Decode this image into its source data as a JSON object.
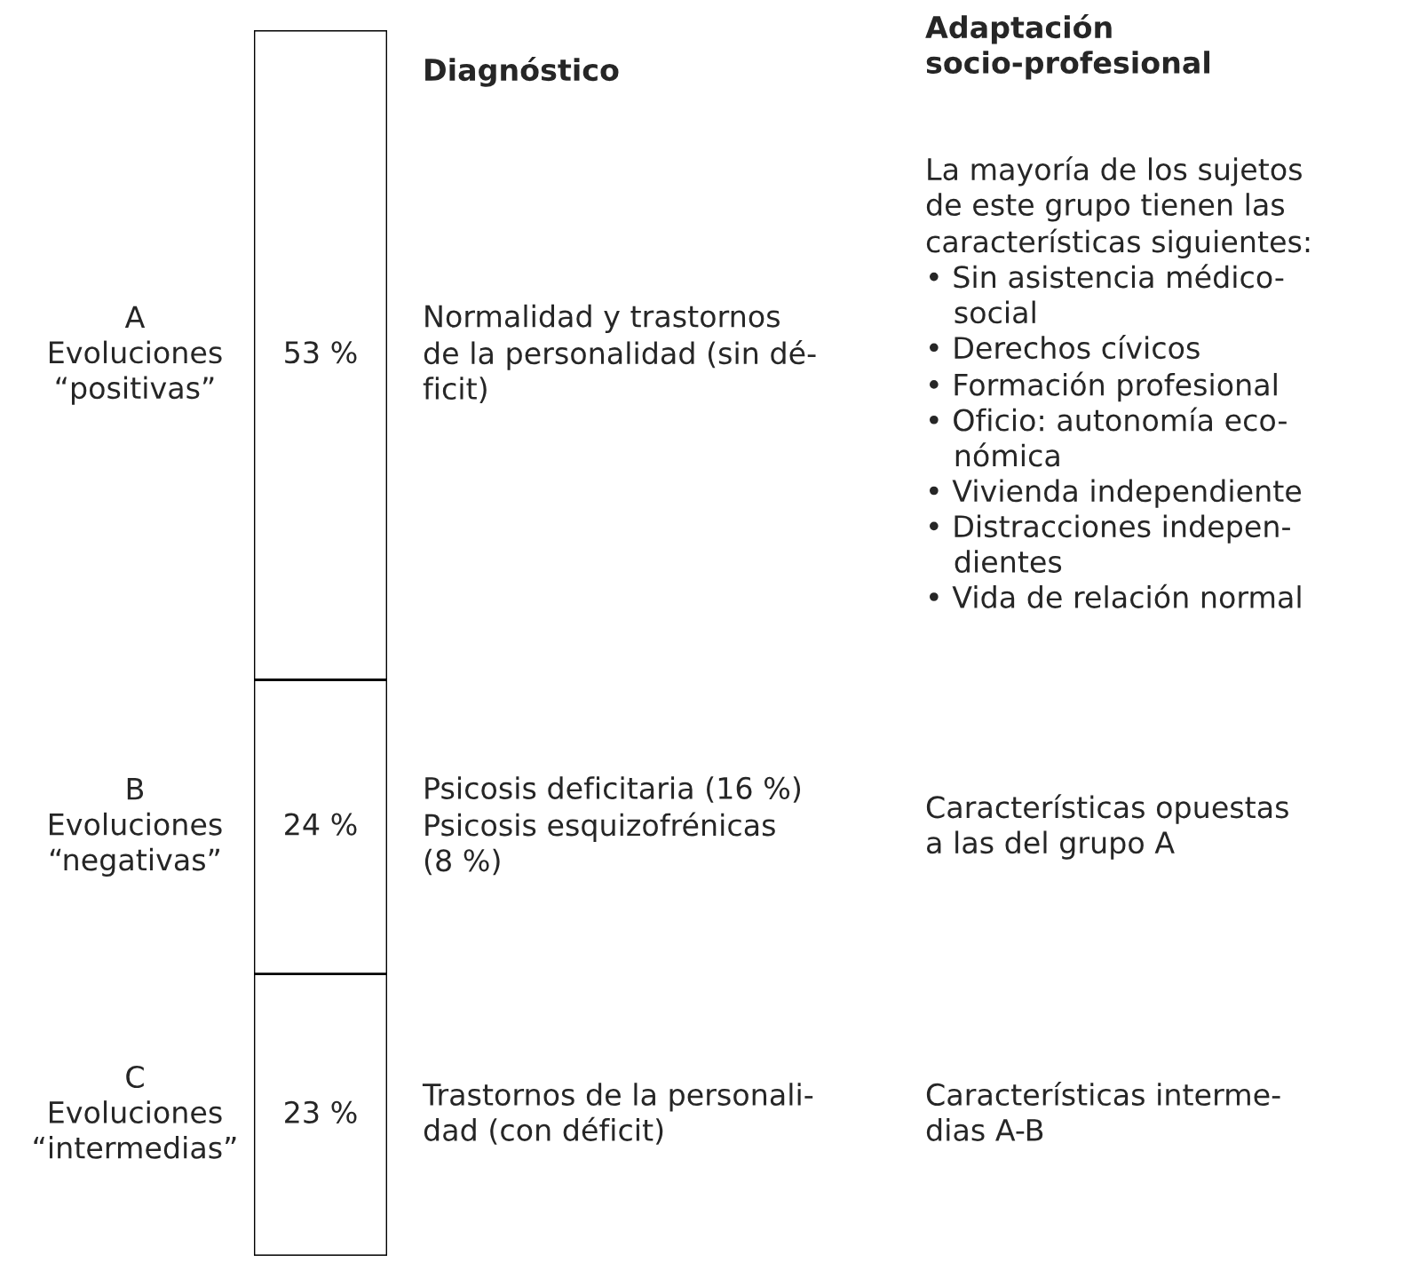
{
  "chart_data": {
    "type": "bar",
    "stacked": true,
    "categories": [
      null
    ],
    "tick_labels": false,
    "series": [
      {
        "name": "C\nEvoluciones\n“intermedias”",
        "color": "#ffffff",
        "values": [
          23
        ],
        "value_labels": [
          "23 %"
        ]
      },
      {
        "name": "B\nEvoluciones\n“negativas”",
        "color": "#ffffff",
        "values": [
          24
        ],
        "value_labels": [
          "24 %"
        ]
      },
      {
        "name": "A\nEvoluciones\n“positivas”",
        "color": "#ffffff",
        "values": [
          53
        ],
        "value_labels": [
          "53 %"
        ]
      }
    ],
    "annotations": [
      "Diagnóstico",
      "Adaptación\nsocio-profesional",
      "Normalidad y trastornos\nde la personalidad (sin dé-\nficit)",
      "La mayoría de los sujetos\nde este grupo tienen las\ncaracterísticas siguientes:\n• Sin asistencia médico-\n   social\n• Derechos cívicos\n• Formación profesional\n• Oficio: autonomía eco-\n   nómica\n• Vivienda independiente\n• Distracciones indepen-\n   dientes\n• Vida de relación normal",
      "Psicosis deficitaria (16 %)\nPsicosis esquizofrénicas\n(8 %)",
      "Características opuestas\na las del grupo A",
      "Trastornos de la personali-\ndad (con déficit)",
      "Características interme-\ndias A-B"
    ]
  }
}
